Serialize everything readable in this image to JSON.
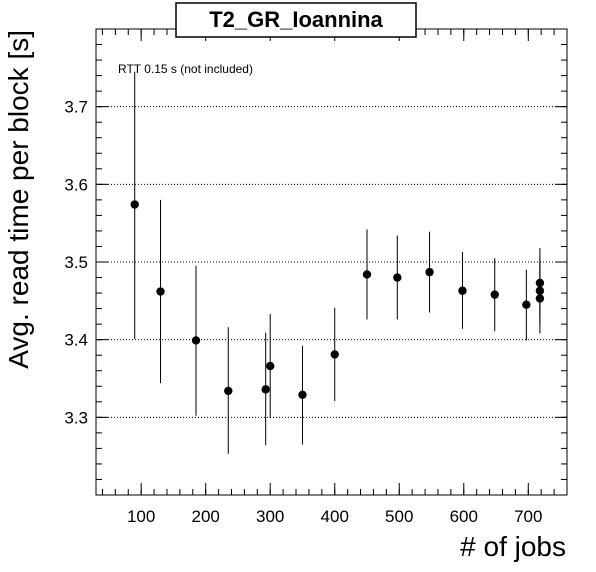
{
  "chart_data": {
    "type": "scatter",
    "title": "T2_GR_Ioannina",
    "annotation": "RTT 0.15 s (not included)",
    "xlabel": "# of jobs",
    "ylabel": "Avg. read time per block [s]",
    "xlim": [
      30,
      760
    ],
    "ylim": [
      3.2,
      3.8
    ],
    "xticks": [
      100,
      200,
      300,
      400,
      500,
      600,
      700
    ],
    "yticks": [
      3.3,
      3.4,
      3.5,
      3.6,
      3.7
    ],
    "grid": "horizontal dotted",
    "points": [
      {
        "x": 90,
        "y": 3.574,
        "lo": 3.401,
        "hi": 3.745
      },
      {
        "x": 130,
        "y": 3.462,
        "lo": 3.344,
        "hi": 3.58
      },
      {
        "x": 185,
        "y": 3.399,
        "lo": 3.302,
        "hi": 3.495
      },
      {
        "x": 235,
        "y": 3.334,
        "lo": 3.253,
        "hi": 3.416
      },
      {
        "x": 293,
        "y": 3.336,
        "lo": 3.264,
        "hi": 3.409
      },
      {
        "x": 300,
        "y": 3.366,
        "lo": 3.299,
        "hi": 3.433
      },
      {
        "x": 350,
        "y": 3.329,
        "lo": 3.265,
        "hi": 3.392
      },
      {
        "x": 400,
        "y": 3.381,
        "lo": 3.321,
        "hi": 3.441
      },
      {
        "x": 450,
        "y": 3.484,
        "lo": 3.426,
        "hi": 3.542
      },
      {
        "x": 497,
        "y": 3.48,
        "lo": 3.426,
        "hi": 3.534
      },
      {
        "x": 547,
        "y": 3.487,
        "lo": 3.435,
        "hi": 3.539
      },
      {
        "x": 598,
        "y": 3.463,
        "lo": 3.414,
        "hi": 3.513
      },
      {
        "x": 648,
        "y": 3.458,
        "lo": 3.411,
        "hi": 3.505
      },
      {
        "x": 697,
        "y": 3.445,
        "lo": 3.399,
        "hi": 3.49
      },
      {
        "x": 718,
        "y": 3.473,
        "lo": 3.43,
        "hi": 3.518
      },
      {
        "x": 718,
        "y": 3.463,
        "lo": 3.42,
        "hi": 3.506
      },
      {
        "x": 718,
        "y": 3.453,
        "lo": 3.408,
        "hi": 3.496
      }
    ]
  }
}
